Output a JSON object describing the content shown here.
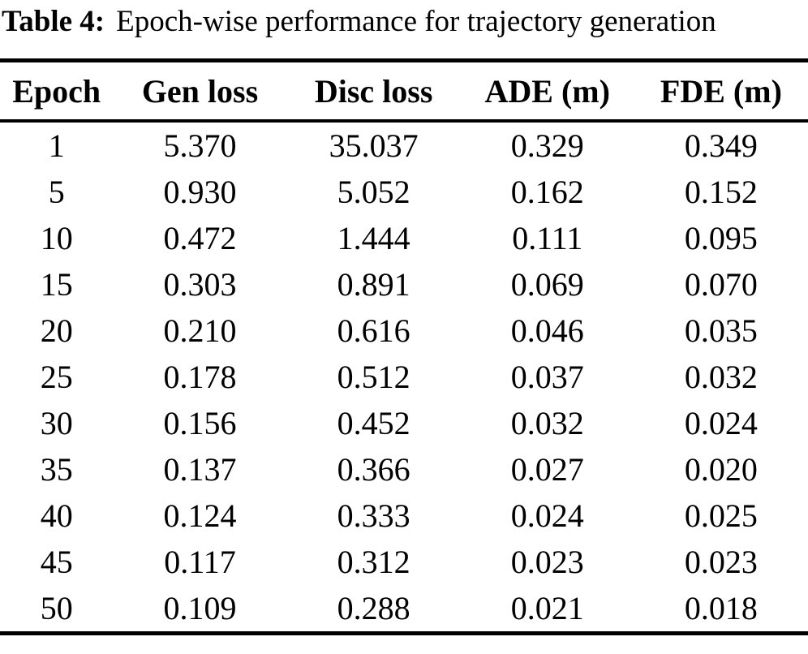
{
  "caption": {
    "label": "Table 4:",
    "text": "Epoch-wise performance for trajectory generation"
  },
  "table": {
    "headers": [
      "Epoch",
      "Gen loss",
      "Disc loss",
      "ADE (m)",
      "FDE (m)"
    ],
    "rows": [
      [
        "1",
        "5.370",
        "35.037",
        "0.329",
        "0.349"
      ],
      [
        "5",
        "0.930",
        "5.052",
        "0.162",
        "0.152"
      ],
      [
        "10",
        "0.472",
        "1.444",
        "0.111",
        "0.095"
      ],
      [
        "15",
        "0.303",
        "0.891",
        "0.069",
        "0.070"
      ],
      [
        "20",
        "0.210",
        "0.616",
        "0.046",
        "0.035"
      ],
      [
        "25",
        "0.178",
        "0.512",
        "0.037",
        "0.032"
      ],
      [
        "30",
        "0.156",
        "0.452",
        "0.032",
        "0.024"
      ],
      [
        "35",
        "0.137",
        "0.366",
        "0.027",
        "0.020"
      ],
      [
        "40",
        "0.124",
        "0.333",
        "0.024",
        "0.025"
      ],
      [
        "45",
        "0.117",
        "0.312",
        "0.023",
        "0.023"
      ],
      [
        "50",
        "0.109",
        "0.288",
        "0.021",
        "0.018"
      ]
    ]
  },
  "chart_data": {
    "type": "table",
    "title": "Table 4: Epoch-wise performance for trajectory generation",
    "columns": [
      "Epoch",
      "Gen loss",
      "Disc loss",
      "ADE (m)",
      "FDE (m)"
    ],
    "rows": [
      [
        1,
        5.37,
        35.037,
        0.329,
        0.349
      ],
      [
        5,
        0.93,
        5.052,
        0.162,
        0.152
      ],
      [
        10,
        0.472,
        1.444,
        0.111,
        0.095
      ],
      [
        15,
        0.303,
        0.891,
        0.069,
        0.07
      ],
      [
        20,
        0.21,
        0.616,
        0.046,
        0.035
      ],
      [
        25,
        0.178,
        0.512,
        0.037,
        0.032
      ],
      [
        30,
        0.156,
        0.452,
        0.032,
        0.024
      ],
      [
        35,
        0.137,
        0.366,
        0.027,
        0.02
      ],
      [
        40,
        0.124,
        0.333,
        0.024,
        0.025
      ],
      [
        45,
        0.117,
        0.312,
        0.023,
        0.023
      ],
      [
        50,
        0.109,
        0.288,
        0.021,
        0.018
      ]
    ]
  }
}
